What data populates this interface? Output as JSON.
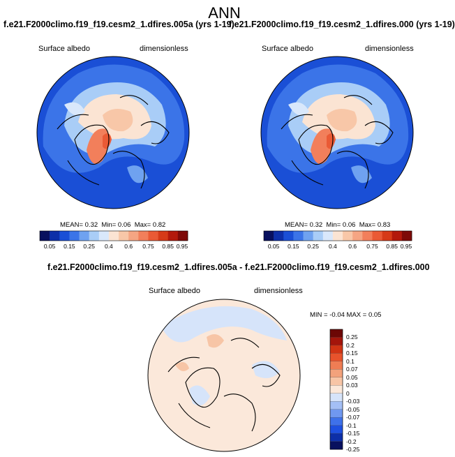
{
  "page": {
    "title": "ANN"
  },
  "colors": {
    "sequential": [
      "#08105e",
      "#0d2fa8",
      "#1a4fd6",
      "#3b74e8",
      "#6fa2f0",
      "#a9cdf7",
      "#d9e8fb",
      "#fbe4d3",
      "#f8c7a8",
      "#f5a583",
      "#f27f5b",
      "#ea5a35",
      "#d63a18",
      "#b3190c",
      "#7e0a08"
    ],
    "diverging": [
      "#08105e",
      "#0d2fa8",
      "#1e50e0",
      "#3e71ea",
      "#7098f0",
      "#a4bff5",
      "#d6e4fa",
      "#fbe8da",
      "#f7c5a6",
      "#f3a27c",
      "#ef7d54",
      "#e8532c",
      "#d13414",
      "#a4150b",
      "#6c0705"
    ]
  },
  "chart_data": [
    {
      "type": "heatmap",
      "projection": "polar-stereographic-north",
      "title": "f.e21.F2000climo.f19_f19.cesm2_1.dfires.005a (yrs 1-19)",
      "variable": "Surface albedo",
      "units": "dimensionless",
      "stats": {
        "mean_label": "MEAN=",
        "mean": "0.32",
        "min_label": "Min=",
        "min": "0.06",
        "max_label": "Max=",
        "max": "0.82"
      },
      "colorbar": {
        "ticks": [
          "0.05",
          "0.15",
          "0.25",
          "0.4",
          "0.6",
          "0.75",
          "0.85",
          "0.95"
        ],
        "levels": [
          0.05,
          0.1,
          0.15,
          0.2,
          0.25,
          0.3,
          0.4,
          0.5,
          0.6,
          0.7,
          0.75,
          0.8,
          0.85,
          0.9,
          0.95
        ]
      }
    },
    {
      "type": "heatmap",
      "projection": "polar-stereographic-north",
      "title": "f.e21.F2000climo.f19_f19.cesm2_1.dfires.000 (yrs 1-19)",
      "variable": "Surface albedo",
      "units": "dimensionless",
      "stats": {
        "mean_label": "MEAN=",
        "mean": "0.32",
        "min_label": "Min=",
        "min": "0.06",
        "max_label": "Max=",
        "max": "0.83"
      },
      "colorbar": {
        "ticks": [
          "0.05",
          "0.15",
          "0.25",
          "0.4",
          "0.6",
          "0.75",
          "0.85",
          "0.95"
        ],
        "levels": [
          0.05,
          0.1,
          0.15,
          0.2,
          0.25,
          0.3,
          0.4,
          0.5,
          0.6,
          0.7,
          0.75,
          0.8,
          0.85,
          0.9,
          0.95
        ]
      }
    },
    {
      "type": "heatmap",
      "projection": "polar-stereographic-north",
      "title": "f.e21.F2000climo.f19_f19.cesm2_1.dfires.005a - f.e21.F2000climo.f19_f19.cesm2_1.dfires.000",
      "variable": "Surface albedo",
      "units": "dimensionless",
      "stats": {
        "min_label": "MIN =",
        "min": "-0.04",
        "max_label": "MAX =",
        "max": "0.05"
      },
      "colorbar": {
        "ticks": [
          "0.25",
          "0.2",
          "0.15",
          "0.1",
          "0.07",
          "0.05",
          "0.03",
          "0",
          "-0.03",
          "-0.05",
          "-0.07",
          "-0.1",
          "-0.15",
          "-0.2",
          "-0.25"
        ]
      }
    }
  ]
}
